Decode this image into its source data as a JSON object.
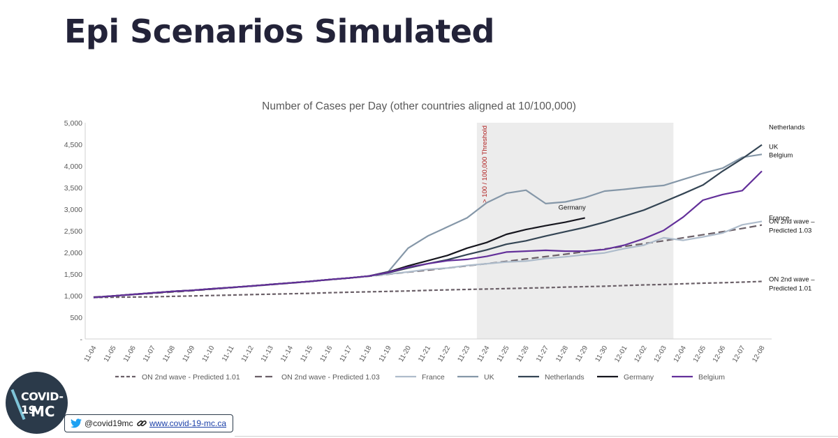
{
  "page": {
    "title": "Epi Scenarios Simulated",
    "logo_line1": "COVID-19",
    "logo_line2": "MC",
    "twitter_handle": "@covid19mc",
    "website": "www.covid-19-mc.ca",
    "icons": [
      "twitter-bird-icon",
      "link-icon"
    ]
  },
  "chart_data": {
    "type": "line",
    "title": "Number of Cases per Day (other countries aligned at 10/100,000)",
    "ylim": [
      0,
      5000
    ],
    "yticks": [
      {
        "value": 0,
        "label": "-"
      },
      {
        "value": 500,
        "label": "500"
      },
      {
        "value": 1000,
        "label": "1,000"
      },
      {
        "value": 1500,
        "label": "1,500"
      },
      {
        "value": 2000,
        "label": "2,000"
      },
      {
        "value": 2500,
        "label": "2,500"
      },
      {
        "value": 3000,
        "label": "3,000"
      },
      {
        "value": 3500,
        "label": "3,500"
      },
      {
        "value": 4000,
        "label": "4,000"
      },
      {
        "value": 4500,
        "label": "4,500"
      },
      {
        "value": 5000,
        "label": "5,000"
      }
    ],
    "categories": [
      "11-04",
      "11-05",
      "11-06",
      "11-07",
      "11-08",
      "11-09",
      "11-10",
      "11-11",
      "11-12",
      "11-13",
      "11-14",
      "11-15",
      "11-16",
      "11-17",
      "11-18",
      "11-19",
      "11-20",
      "11-21",
      "11-22",
      "11-23",
      "11-24",
      "11-25",
      "11-26",
      "11-27",
      "11-28",
      "11-29",
      "11-30",
      "12-01",
      "12-02",
      "12-03",
      "12-04",
      "12-05",
      "12-06",
      "12-07",
      "12-08"
    ],
    "grid": false,
    "legend_position": "bottom",
    "shaded_region": {
      "from": "11-24",
      "to": "12-04",
      "color": "#ececec",
      "label": "> 100 / 100,000 Threshold",
      "label_color": "#b02020"
    },
    "series": [
      {
        "name": "ON 2nd wave - Predicted 1.01",
        "end_label": "ON 2nd wave – Predicted 1.01",
        "color": "#6b6068",
        "dash": "5,3",
        "width": 2.2,
        "values": [
          960,
          965,
          970,
          975,
          985,
          995,
          1005,
          1015,
          1025,
          1035,
          1045,
          1055,
          1070,
          1080,
          1090,
          1100,
          1110,
          1125,
          1135,
          1145,
          1155,
          1165,
          1175,
          1185,
          1200,
          1210,
          1220,
          1235,
          1250,
          1260,
          1275,
          1290,
          1300,
          1315,
          1330
        ]
      },
      {
        "name": "ON 2nd wave - Predicted 1.03",
        "end_label": "ON 2nd wave – Predicted 1.03",
        "color": "#6b6068",
        "dash": "10,5",
        "width": 2.2,
        "values": [
          970,
          995,
          1025,
          1055,
          1085,
          1115,
          1150,
          1185,
          1220,
          1255,
          1290,
          1330,
          1370,
          1410,
          1450,
          1495,
          1545,
          1590,
          1640,
          1690,
          1740,
          1795,
          1850,
          1905,
          1960,
          2020,
          2080,
          2140,
          2205,
          2270,
          2340,
          2410,
          2480,
          2555,
          2635
        ]
      },
      {
        "name": "France",
        "end_label": "France",
        "color": "#aebccb",
        "dash": "",
        "width": 2.2,
        "values": [
          960,
          995,
          1030,
          1065,
          1100,
          1125,
          1160,
          1190,
          1225,
          1260,
          1295,
          1330,
          1375,
          1410,
          1455,
          1500,
          1550,
          1610,
          1640,
          1700,
          1740,
          1780,
          1800,
          1860,
          1900,
          1950,
          1990,
          2090,
          2170,
          2340,
          2280,
          2360,
          2450,
          2640,
          2720
        ]
      },
      {
        "name": "UK",
        "end_label": "UK",
        "color": "#8597a8",
        "dash": "",
        "width": 2.2,
        "values": [
          960,
          995,
          1030,
          1065,
          1100,
          1125,
          1160,
          1190,
          1225,
          1260,
          1295,
          1330,
          1375,
          1410,
          1455,
          1560,
          2100,
          2380,
          2590,
          2800,
          3150,
          3370,
          3440,
          3130,
          3170,
          3270,
          3420,
          3460,
          3510,
          3550,
          3690,
          3830,
          3950,
          4200,
          4270
        ]
      },
      {
        "name": "Netherlands",
        "end_label": "Netherlands",
        "color": "#344554",
        "dash": "",
        "width": 2.2,
        "values": [
          960,
          995,
          1030,
          1065,
          1100,
          1125,
          1160,
          1190,
          1225,
          1260,
          1295,
          1330,
          1375,
          1410,
          1455,
          1530,
          1640,
          1740,
          1830,
          1950,
          2060,
          2190,
          2270,
          2380,
          2480,
          2580,
          2700,
          2840,
          2980,
          3170,
          3360,
          3560,
          3880,
          4170,
          4490
        ]
      },
      {
        "name": "Germany",
        "end_label": "Germany",
        "color": "#16161e",
        "dash": "",
        "width": 2.2,
        "values": [
          960,
          995,
          1030,
          1065,
          1100,
          1125,
          1160,
          1190,
          1225,
          1260,
          1295,
          1330,
          1375,
          1410,
          1455,
          1550,
          1690,
          1810,
          1930,
          2100,
          2230,
          2420,
          2530,
          2620,
          2700,
          2800,
          null,
          null,
          null,
          null,
          null,
          null,
          null,
          null,
          null
        ]
      },
      {
        "name": "Belgium",
        "end_label": "Belgium",
        "color": "#63309a",
        "dash": "",
        "width": 2.2,
        "values": [
          960,
          995,
          1030,
          1065,
          1100,
          1125,
          1160,
          1190,
          1225,
          1260,
          1295,
          1330,
          1375,
          1410,
          1455,
          1540,
          1660,
          1740,
          1810,
          1840,
          1910,
          2010,
          2030,
          2050,
          2030,
          2030,
          2070,
          2170,
          2320,
          2510,
          2820,
          3210,
          3340,
          3430,
          3880
        ]
      }
    ]
  }
}
